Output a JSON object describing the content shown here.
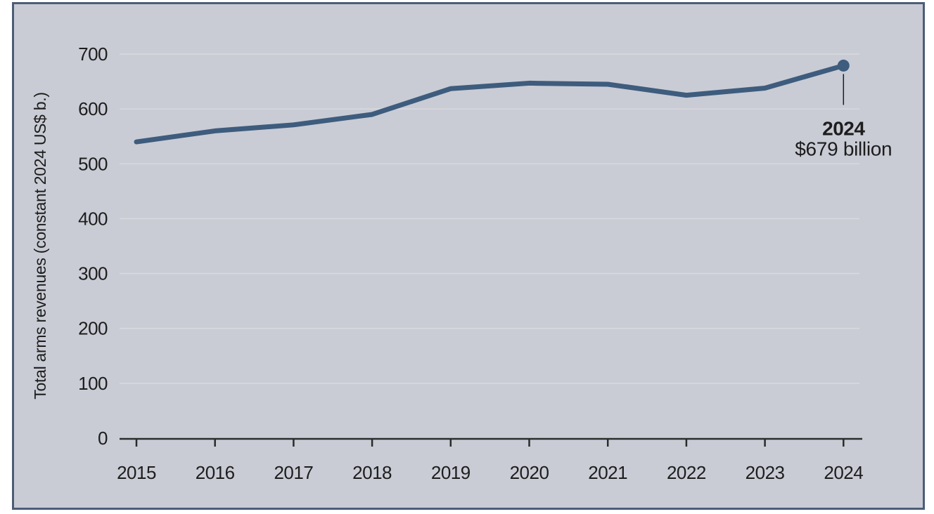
{
  "colors": {
    "page_background": "#ffffff",
    "panel_background": "#c9ccd5",
    "panel_border": "#4d5d77",
    "gridline": "#d7d9dd",
    "axis": "#2b2b2b",
    "text": "#1d1d1d",
    "line": "#3e5c7d"
  },
  "chart_data": {
    "type": "line",
    "title": "",
    "xlabel": "",
    "ylabel": "Total arms revenues (constant 2024 US$ b.)",
    "categories": [
      "2015",
      "2016",
      "2017",
      "2018",
      "2019",
      "2020",
      "2021",
      "2022",
      "2023",
      "2024"
    ],
    "values": [
      540,
      560,
      571,
      590,
      637,
      647,
      645,
      625,
      638,
      679
    ],
    "ylim": [
      0,
      700
    ],
    "yticks": [
      0,
      100,
      200,
      300,
      400,
      500,
      600,
      700
    ],
    "grid": "horizontal",
    "legend": "none",
    "line_color": "#3e5c7d",
    "marker_last_point": true,
    "annotation": {
      "year_label": "2024",
      "value_label": "$679 billion"
    }
  }
}
